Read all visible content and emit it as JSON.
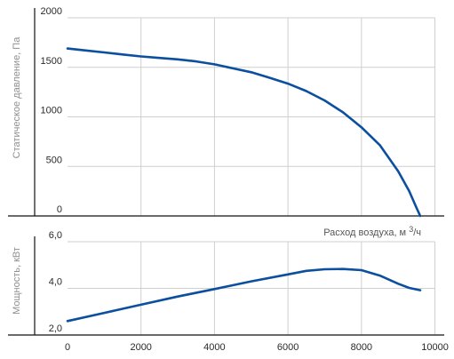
{
  "chart_data": [
    {
      "type": "line",
      "title": "",
      "xlabel": "Расход воздуха, м",
      "xlabel_unit": "3/ч",
      "ylabel": "Статическое давление, Па",
      "xlim": [
        -1000,
        10000
      ],
      "ylim": [
        0,
        2000
      ],
      "yticks": [
        0,
        500,
        1000,
        1500,
        2000
      ],
      "ytick_labels": [
        "0",
        "500",
        "1000",
        "1500",
        "2000"
      ],
      "grid": true,
      "color": "#0b4f9e",
      "series": [
        {
          "x": [
            0,
            500,
            1000,
            1500,
            2000,
            2500,
            3000,
            3500,
            4000,
            4500,
            5000,
            5500,
            6000,
            6500,
            7000,
            7500,
            8000,
            8500,
            9000,
            9300,
            9500,
            9600
          ],
          "y": [
            1690,
            1670,
            1650,
            1630,
            1610,
            1595,
            1580,
            1560,
            1530,
            1490,
            1450,
            1395,
            1335,
            1260,
            1165,
            1045,
            895,
            715,
            450,
            250,
            80,
            0
          ]
        }
      ]
    },
    {
      "type": "line",
      "title": "",
      "xlabel": "",
      "ylabel": "Мощность, кВт",
      "xlim": [
        -1000,
        10000
      ],
      "ylim": [
        2.0,
        6.0
      ],
      "xticks": [
        0,
        2000,
        4000,
        6000,
        8000,
        10000
      ],
      "xtick_labels": [
        "0",
        "2000",
        "4000",
        "6000",
        "8000",
        "10000"
      ],
      "yticks": [
        2.0,
        4.0,
        6.0
      ],
      "ytick_labels": [
        "2,0",
        "4,0",
        "6,0"
      ],
      "grid": true,
      "color": "#0b4f9e",
      "series": [
        {
          "x": [
            0,
            1000,
            2000,
            3000,
            4000,
            5000,
            6000,
            6500,
            7000,
            7500,
            8000,
            8500,
            9000,
            9300,
            9600
          ],
          "y": [
            2.6,
            2.95,
            3.3,
            3.65,
            3.97,
            4.3,
            4.6,
            4.75,
            4.82,
            4.83,
            4.78,
            4.55,
            4.2,
            4.02,
            3.92
          ]
        }
      ]
    }
  ]
}
